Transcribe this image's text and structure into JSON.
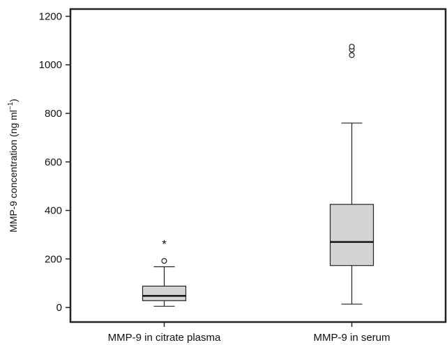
{
  "chart_data": {
    "type": "boxplot",
    "title": "",
    "xlabel": "",
    "ylabel": "MMP-9 concentration (ng ml",
    "ylabel_superscript": "−1",
    "ylabel_close": ")",
    "ylim": [
      -60,
      1230
    ],
    "yticks": [
      0,
      200,
      400,
      600,
      800,
      1000,
      1200
    ],
    "grid": false,
    "categories": [
      "MMP-9 in citrate plasma",
      "MMP-9 in serum"
    ],
    "series": [
      {
        "whisker_low": 5,
        "q1": 28,
        "median": 48,
        "q3": 88,
        "whisker_high": 168,
        "outliers": [
          192
        ],
        "extremes": [
          268
        ]
      },
      {
        "whisker_low": 14,
        "q1": 173,
        "median": 270,
        "q3": 425,
        "whisker_high": 760,
        "outliers": [
          1040,
          1063,
          1075
        ],
        "extremes": []
      }
    ],
    "colors": {
      "box_fill": "#d4d4d4",
      "line": "#222222",
      "median": "#111111"
    }
  }
}
